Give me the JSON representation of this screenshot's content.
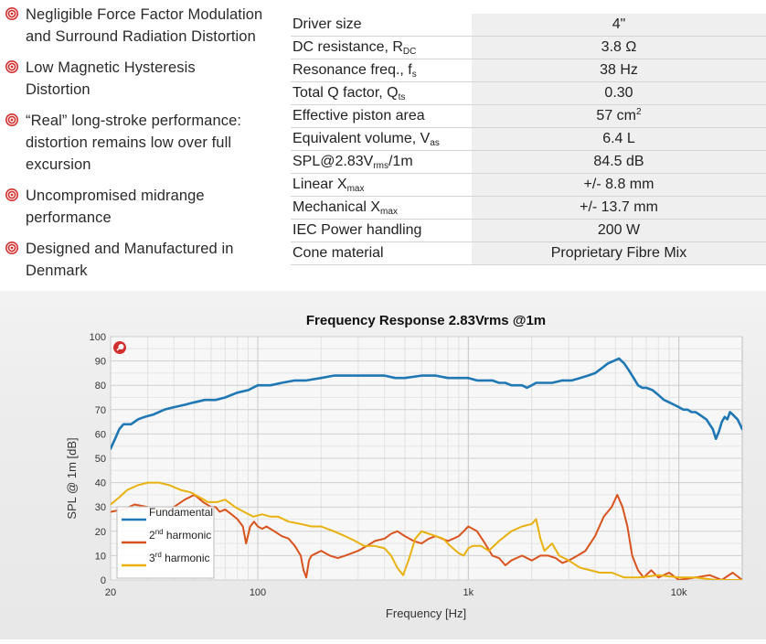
{
  "features": [
    {
      "lines": [
        "Negligible Force Factor Modulation",
        "and Surround Radiation Distortion"
      ]
    },
    {
      "lines": [
        "Low Magnetic Hysteresis",
        "Distortion"
      ]
    },
    {
      "lines": [
        "“Real” long-stroke performance:",
        "distortion remains low over full",
        "excursion"
      ]
    },
    {
      "lines": [
        "Uncompromised midrange",
        "performance"
      ]
    },
    {
      "lines": [
        "Designed and Manufactured in",
        "Denmark"
      ]
    }
  ],
  "specs": [
    {
      "label": "Driver size",
      "sub": "",
      "label_suffix": "",
      "value": "4\"",
      "value_sup": "",
      "value_suffix": ""
    },
    {
      "label": "DC resistance, R",
      "sub": "DC",
      "label_suffix": "",
      "value": "3.8 Ω",
      "value_sup": "",
      "value_suffix": ""
    },
    {
      "label": "Resonance freq., f",
      "sub": "s",
      "label_suffix": "",
      "value": "38 Hz",
      "value_sup": "",
      "value_suffix": ""
    },
    {
      "label": "Total Q factor, Q",
      "sub": "ts",
      "label_suffix": "",
      "value": "0.30",
      "value_sup": "",
      "value_suffix": ""
    },
    {
      "label": "Effective piston area",
      "sub": "",
      "label_suffix": "",
      "value": "57 cm",
      "value_sup": "2",
      "value_suffix": ""
    },
    {
      "label": "Equivalent volume, V",
      "sub": "as",
      "label_suffix": "",
      "value": "6.4 L",
      "value_sup": "",
      "value_suffix": ""
    },
    {
      "label": "SPL@2.83V",
      "sub": "rms",
      "label_suffix": "/1m",
      "value": "84.5 dB",
      "value_sup": "",
      "value_suffix": ""
    },
    {
      "label": "Linear X",
      "sub": "max",
      "label_suffix": "",
      "value": "+/- 8.8 mm",
      "value_sup": "",
      "value_suffix": ""
    },
    {
      "label": "Mechanical X",
      "sub": "max",
      "label_suffix": "",
      "value": "+/- 13.7 mm",
      "value_sup": "",
      "value_suffix": ""
    },
    {
      "label": "IEC Power handling",
      "sub": "",
      "label_suffix": "",
      "value": "200 W",
      "value_sup": "",
      "value_suffix": ""
    },
    {
      "label": "Cone material",
      "sub": "",
      "label_suffix": "",
      "value": "Proprietary Fibre Mix",
      "value_sup": "",
      "value_suffix": ""
    }
  ],
  "colors": {
    "accent": "#d22f2f",
    "fundamental": "#1f77b4",
    "second_harmonic": "#d9531e",
    "third_harmonic": "#e9b10e"
  },
  "icons": {
    "bullet": "target-bullet-icon",
    "chart_logo": "brand-logo-icon"
  },
  "chart_data": {
    "type": "line",
    "title": "Frequency Response 2.83Vrms @1m",
    "xlabel": "Frequency [Hz]",
    "ylabel": "SPL @ 1m [dB]",
    "xscale": "log",
    "xlim": [
      20,
      20000
    ],
    "ylim": [
      0,
      100
    ],
    "grid": true,
    "legend_position": "bottom-left",
    "x_ticks": [
      {
        "v": 20,
        "label": "20"
      },
      {
        "v": 100,
        "label": "100"
      },
      {
        "v": 1000,
        "label": "1k"
      },
      {
        "v": 10000,
        "label": "10k"
      }
    ],
    "y_ticks": [
      0,
      10,
      20,
      30,
      40,
      50,
      60,
      70,
      80,
      90,
      100
    ],
    "series": [
      {
        "name": "Fundamental",
        "name_sup": "",
        "name_suffix": "",
        "color": "#1f77b4",
        "points": [
          [
            20,
            54
          ],
          [
            21,
            58
          ],
          [
            22,
            62
          ],
          [
            23,
            64
          ],
          [
            25,
            64
          ],
          [
            27,
            66
          ],
          [
            29,
            67
          ],
          [
            32,
            68
          ],
          [
            36,
            70
          ],
          [
            40,
            71
          ],
          [
            45,
            72
          ],
          [
            50,
            73
          ],
          [
            56,
            74
          ],
          [
            63,
            74
          ],
          [
            70,
            75
          ],
          [
            80,
            77
          ],
          [
            90,
            78
          ],
          [
            100,
            80
          ],
          [
            115,
            80
          ],
          [
            130,
            81
          ],
          [
            150,
            82
          ],
          [
            170,
            82
          ],
          [
            200,
            83
          ],
          [
            230,
            84
          ],
          [
            260,
            84
          ],
          [
            300,
            84
          ],
          [
            350,
            84
          ],
          [
            400,
            84
          ],
          [
            450,
            83
          ],
          [
            500,
            83
          ],
          [
            600,
            84
          ],
          [
            700,
            84
          ],
          [
            800,
            83
          ],
          [
            900,
            83
          ],
          [
            1000,
            83
          ],
          [
            1100,
            82
          ],
          [
            1200,
            82
          ],
          [
            1300,
            82
          ],
          [
            1400,
            81
          ],
          [
            1500,
            81
          ],
          [
            1600,
            80
          ],
          [
            1700,
            80
          ],
          [
            1800,
            80
          ],
          [
            1900,
            79
          ],
          [
            2000,
            80
          ],
          [
            2100,
            81
          ],
          [
            2300,
            81
          ],
          [
            2500,
            81
          ],
          [
            2800,
            82
          ],
          [
            3100,
            82
          ],
          [
            3400,
            83
          ],
          [
            3700,
            84
          ],
          [
            4000,
            85
          ],
          [
            4300,
            87
          ],
          [
            4600,
            89
          ],
          [
            4900,
            90
          ],
          [
            5200,
            91
          ],
          [
            5500,
            89
          ],
          [
            5800,
            86
          ],
          [
            6100,
            83
          ],
          [
            6400,
            80
          ],
          [
            6700,
            79
          ],
          [
            7000,
            79
          ],
          [
            7500,
            78
          ],
          [
            8000,
            76
          ],
          [
            8500,
            74
          ],
          [
            9000,
            73
          ],
          [
            9500,
            72
          ],
          [
            10000,
            71
          ],
          [
            10500,
            70
          ],
          [
            11000,
            70
          ],
          [
            11500,
            69
          ],
          [
            12000,
            69
          ],
          [
            12500,
            68
          ],
          [
            13000,
            67
          ],
          [
            13500,
            66
          ],
          [
            14000,
            64
          ],
          [
            14500,
            62
          ],
          [
            15000,
            58
          ],
          [
            15500,
            61
          ],
          [
            16000,
            65
          ],
          [
            16500,
            67
          ],
          [
            17000,
            66
          ],
          [
            17500,
            69
          ],
          [
            18000,
            68
          ],
          [
            18500,
            67
          ],
          [
            19000,
            66
          ],
          [
            19500,
            64
          ],
          [
            20000,
            62
          ]
        ]
      },
      {
        "name": "2",
        "name_sup": "nd",
        "name_suffix": " harmonic",
        "color": "#d9531e",
        "points": [
          [
            20,
            28
          ],
          [
            23,
            29
          ],
          [
            26,
            31
          ],
          [
            30,
            30
          ],
          [
            33,
            28
          ],
          [
            36,
            29
          ],
          [
            40,
            30
          ],
          [
            45,
            33
          ],
          [
            50,
            35
          ],
          [
            55,
            32
          ],
          [
            60,
            30
          ],
          [
            63,
            30
          ],
          [
            66,
            28
          ],
          [
            70,
            29
          ],
          [
            75,
            27
          ],
          [
            80,
            25
          ],
          [
            85,
            22
          ],
          [
            88,
            15
          ],
          [
            92,
            22
          ],
          [
            96,
            24
          ],
          [
            100,
            22
          ],
          [
            105,
            21
          ],
          [
            110,
            22
          ],
          [
            120,
            20
          ],
          [
            130,
            18
          ],
          [
            140,
            17
          ],
          [
            150,
            14
          ],
          [
            160,
            10
          ],
          [
            165,
            4
          ],
          [
            170,
            1
          ],
          [
            175,
            8
          ],
          [
            180,
            10
          ],
          [
            190,
            11
          ],
          [
            200,
            12
          ],
          [
            220,
            10
          ],
          [
            240,
            9
          ],
          [
            260,
            10
          ],
          [
            280,
            11
          ],
          [
            300,
            12
          ],
          [
            330,
            14
          ],
          [
            360,
            16
          ],
          [
            400,
            17
          ],
          [
            430,
            19
          ],
          [
            460,
            20
          ],
          [
            500,
            18
          ],
          [
            550,
            16
          ],
          [
            600,
            15
          ],
          [
            650,
            17
          ],
          [
            700,
            18
          ],
          [
            750,
            17
          ],
          [
            800,
            16
          ],
          [
            850,
            17
          ],
          [
            900,
            18
          ],
          [
            950,
            20
          ],
          [
            1000,
            22
          ],
          [
            1050,
            21
          ],
          [
            1100,
            20
          ],
          [
            1200,
            15
          ],
          [
            1300,
            10
          ],
          [
            1400,
            9
          ],
          [
            1500,
            6
          ],
          [
            1600,
            8
          ],
          [
            1800,
            10
          ],
          [
            2000,
            8
          ],
          [
            2200,
            10
          ],
          [
            2400,
            10
          ],
          [
            2600,
            9
          ],
          [
            2800,
            7
          ],
          [
            3000,
            8
          ],
          [
            3300,
            10
          ],
          [
            3600,
            12
          ],
          [
            4000,
            18
          ],
          [
            4400,
            26
          ],
          [
            4800,
            30
          ],
          [
            5100,
            35
          ],
          [
            5400,
            30
          ],
          [
            5700,
            22
          ],
          [
            6000,
            10
          ],
          [
            6400,
            4
          ],
          [
            6800,
            1
          ],
          [
            7400,
            4
          ],
          [
            8000,
            1
          ],
          [
            9000,
            3
          ],
          [
            10000,
            0
          ],
          [
            12000,
            1
          ],
          [
            14000,
            2
          ],
          [
            16000,
            0
          ],
          [
            18000,
            3
          ],
          [
            20000,
            0
          ]
        ]
      },
      {
        "name": "3",
        "name_sup": "rd",
        "name_suffix": " harmonic",
        "color": "#e9b10e",
        "points": [
          [
            20,
            31
          ],
          [
            22,
            34
          ],
          [
            24,
            37
          ],
          [
            27,
            39
          ],
          [
            30,
            40
          ],
          [
            34,
            40
          ],
          [
            38,
            39
          ],
          [
            43,
            37
          ],
          [
            48,
            36
          ],
          [
            53,
            34
          ],
          [
            58,
            32
          ],
          [
            64,
            32
          ],
          [
            70,
            33
          ],
          [
            78,
            30
          ],
          [
            86,
            28
          ],
          [
            95,
            26
          ],
          [
            105,
            27
          ],
          [
            115,
            26
          ],
          [
            125,
            26
          ],
          [
            140,
            24
          ],
          [
            160,
            23
          ],
          [
            180,
            22
          ],
          [
            200,
            22
          ],
          [
            230,
            20
          ],
          [
            260,
            18
          ],
          [
            290,
            16
          ],
          [
            320,
            14
          ],
          [
            360,
            14
          ],
          [
            400,
            13
          ],
          [
            430,
            10
          ],
          [
            460,
            5
          ],
          [
            490,
            2
          ],
          [
            520,
            8
          ],
          [
            560,
            17
          ],
          [
            600,
            20
          ],
          [
            650,
            19
          ],
          [
            700,
            18
          ],
          [
            760,
            17
          ],
          [
            820,
            14
          ],
          [
            900,
            11
          ],
          [
            950,
            10
          ],
          [
            1000,
            13
          ],
          [
            1050,
            14
          ],
          [
            1150,
            14
          ],
          [
            1250,
            12
          ],
          [
            1400,
            16
          ],
          [
            1600,
            20
          ],
          [
            1800,
            22
          ],
          [
            2000,
            23
          ],
          [
            2100,
            25
          ],
          [
            2200,
            17
          ],
          [
            2300,
            12
          ],
          [
            2500,
            15
          ],
          [
            2700,
            10
          ],
          [
            3000,
            8
          ],
          [
            3400,
            5
          ],
          [
            3800,
            4
          ],
          [
            4200,
            3
          ],
          [
            4800,
            3
          ],
          [
            5500,
            1
          ],
          [
            6500,
            1
          ],
          [
            8000,
            2
          ],
          [
            10000,
            1
          ],
          [
            12000,
            1
          ],
          [
            15000,
            0
          ],
          [
            20000,
            0
          ]
        ]
      }
    ]
  }
}
